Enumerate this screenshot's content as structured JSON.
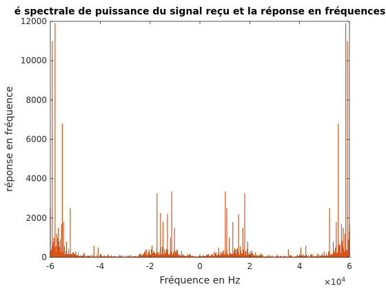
{
  "chart_data": {
    "type": "bar",
    "title": "é spectrale de puissance du signal reçu et la réponse en fréquences",
    "xlabel": "Fréquence en Hz",
    "ylabel": "réponse en fréquence",
    "xlim": [
      -6,
      6
    ],
    "ylim": [
      0,
      12000
    ],
    "x_multiplier_label": "×10",
    "x_multiplier_exponent": "4",
    "xticks": [
      -6,
      -4,
      -2,
      0,
      2,
      4,
      6
    ],
    "xtick_labels": [
      "-6",
      "-4",
      "-2",
      "0",
      "2",
      "4",
      "6"
    ],
    "yticks": [
      0,
      2000,
      4000,
      6000,
      8000,
      10000,
      12000
    ],
    "ytick_labels": [
      "0",
      "2000",
      "4000",
      "6000",
      "8000",
      "10000",
      "12000"
    ],
    "grid": false,
    "bar_color": "#d95319",
    "peaks": {
      "x": [
        -6.0,
        -5.92,
        -5.85,
        -5.81,
        -5.75,
        -5.68,
        -5.55,
        -5.52,
        -5.47,
        -5.35,
        -5.2,
        -4.98,
        -4.25,
        -4.08,
        -2.15,
        -1.92,
        -1.72,
        -1.58,
        -1.48,
        -1.3,
        -1.18,
        -1.13,
        -1.02,
        0.58,
        0.75,
        0.95,
        1.02,
        1.08,
        1.18,
        1.32,
        1.55,
        1.72,
        1.8,
        1.92,
        3.55,
        4.05,
        4.25,
        4.98,
        5.2,
        5.35,
        5.47,
        5.55,
        5.68,
        5.75,
        5.81,
        5.85,
        5.92,
        6.0
      ],
      "values": [
        2500,
        11000,
        1000,
        11900,
        1200,
        1500,
        1700,
        6800,
        1800,
        800,
        2500,
        300,
        600,
        500,
        400,
        600,
        3250,
        2250,
        1800,
        2200,
        1000,
        3350,
        1500,
        300,
        500,
        350,
        3350,
        2500,
        1000,
        1800,
        2200,
        1500,
        3250,
        800,
        400,
        500,
        600,
        300,
        2500,
        800,
        1800,
        6800,
        1700,
        1500,
        1200,
        11900,
        11000,
        1700
      ]
    },
    "noise_envelope": {
      "x": [
        -6.0,
        -5.5,
        -5.0,
        -4.5,
        -4.0,
        -3.5,
        -3.0,
        -2.5,
        -2.0,
        -1.5,
        -1.0,
        -0.5,
        0.0,
        0.5,
        1.0,
        1.5,
        2.0,
        2.5,
        3.0,
        3.5,
        4.0,
        4.5,
        5.0,
        5.5,
        6.0
      ],
      "values": [
        1300,
        650,
        260,
        160,
        130,
        110,
        100,
        150,
        380,
        560,
        420,
        180,
        120,
        180,
        420,
        560,
        380,
        150,
        100,
        110,
        130,
        160,
        260,
        650,
        1300
      ]
    }
  }
}
